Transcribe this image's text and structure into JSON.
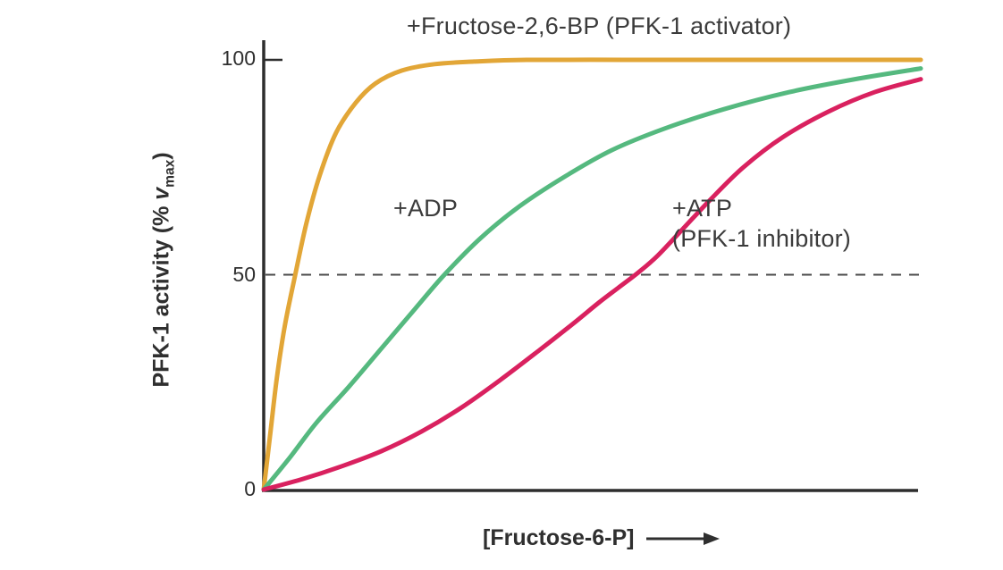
{
  "chart_data": {
    "type": "line",
    "title": "",
    "xlabel": "[Fructose-6-P]",
    "ylabel": "PFK-1 activity (% vmax)",
    "ylabel_parts": {
      "prefix": "PFK-1 activity (% ",
      "variable": "v",
      "subscript": "max",
      "suffix": ")"
    },
    "xlim": [
      0,
      100
    ],
    "ylim": [
      0,
      100
    ],
    "ytick_labels": [
      "0",
      "50",
      "100"
    ],
    "xtick_labels": [],
    "grid": false,
    "legend_position": "inline-annotations",
    "reference_line": {
      "y": 50,
      "style": "dashed"
    },
    "colors": {
      "axis": "#2d2d2d",
      "dashed_line": "#4a4a4a",
      "text": "#3b3b3b"
    },
    "series": [
      {
        "id": "fructose-2-6-bp",
        "name": "+Fructose-2,6-BP (PFK-1 activator)",
        "color": "#E2A637",
        "x": [
          0,
          1,
          2,
          3.2,
          4.8,
          6.5,
          8.5,
          11,
          14,
          17,
          21,
          26,
          32,
          40,
          55,
          70,
          85,
          100
        ],
        "y": [
          0,
          13,
          26,
          38,
          50,
          62,
          73,
          83,
          90,
          94.5,
          97.5,
          99,
          99.6,
          100,
          100,
          100,
          100,
          100
        ]
      },
      {
        "id": "adp",
        "name": "+ADP",
        "color": "#55B97F",
        "x": [
          0,
          4,
          8,
          13,
          18,
          23,
          27.5,
          33,
          39,
          46,
          53,
          61,
          70,
          80,
          90,
          100
        ],
        "y": [
          0,
          7.5,
          15.5,
          24,
          33,
          42,
          50,
          58.5,
          66,
          73,
          79,
          84,
          88.5,
          92.5,
          95.5,
          98
        ]
      },
      {
        "id": "atp",
        "name": "+ATP (PFK-1 inhibitor)",
        "color": "#D9215F",
        "x": [
          0,
          6,
          12,
          18,
          24,
          30,
          36,
          42,
          47,
          51,
          54,
          57,
          60,
          64,
          68,
          73,
          79,
          86,
          93,
          100
        ],
        "y": [
          0,
          2.5,
          5.5,
          9,
          13.5,
          19,
          25.5,
          32.5,
          38.5,
          43.5,
          47,
          50.5,
          54.5,
          61,
          67.5,
          75,
          82,
          88,
          92.5,
          95.5
        ]
      }
    ]
  },
  "labels": {
    "atp_line1": "+ATP",
    "atp_line2": "(PFK-1 inhibitor)"
  }
}
